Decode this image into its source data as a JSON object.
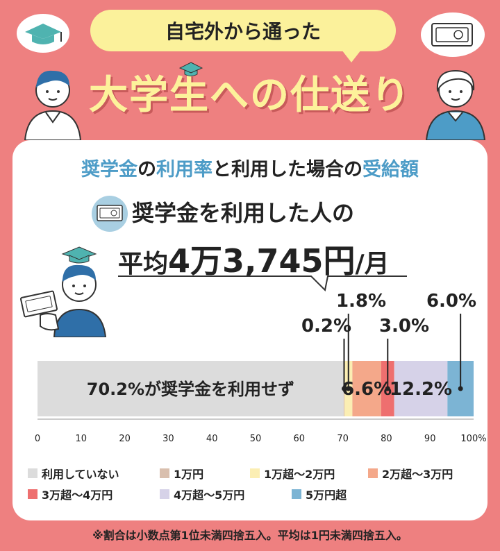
{
  "header": {
    "tag": "自宅外から通った",
    "title": "大学生への仕送り"
  },
  "subtitle": {
    "part1": "奨学金",
    "part2": "の",
    "part3": "利用率",
    "part4": "と利用した場合の",
    "part5": "受給額"
  },
  "summary": {
    "line1": "奨学金を利用した人の",
    "line2_prefix": "平均",
    "line2_value": "4万3,745円",
    "line2_suffix": "/月"
  },
  "footnote": "※割合は小数点第1位未満四捨五入。平均は1円未満四捨五入。",
  "colors": {
    "background": "#ee8080",
    "yellow": "#fbf19b",
    "blue_text": "#4d9cc7"
  },
  "chart_data": {
    "type": "bar",
    "orientation": "horizontal-stacked",
    "xlim": [
      0,
      100
    ],
    "xticks": [
      "0",
      "10",
      "20",
      "30",
      "40",
      "50",
      "60",
      "70",
      "80",
      "90",
      "100%"
    ],
    "series": [
      {
        "name": "利用していない",
        "value": 70.2,
        "color": "#dcdcdc",
        "label": "70.2%が奨学金を利用せず"
      },
      {
        "name": "1万円",
        "value": 0.2,
        "color": "#d9bfae",
        "label": "0.2%"
      },
      {
        "name": "1万超～2万円",
        "value": 1.8,
        "color": "#fbeeb3",
        "label": "1.8%"
      },
      {
        "name": "2万超～3万円",
        "value": 6.6,
        "color": "#f4a88a",
        "label": "6.6%"
      },
      {
        "name": "3万超～4万円",
        "value": 3.0,
        "color": "#ee6f6f",
        "label": "3.0%"
      },
      {
        "name": "4万超～5万円",
        "value": 12.2,
        "color": "#d6d2e8",
        "label": "12.2%"
      },
      {
        "name": "5万円超",
        "value": 6.0,
        "color": "#7cb4d4",
        "label": "6.0%"
      }
    ]
  }
}
